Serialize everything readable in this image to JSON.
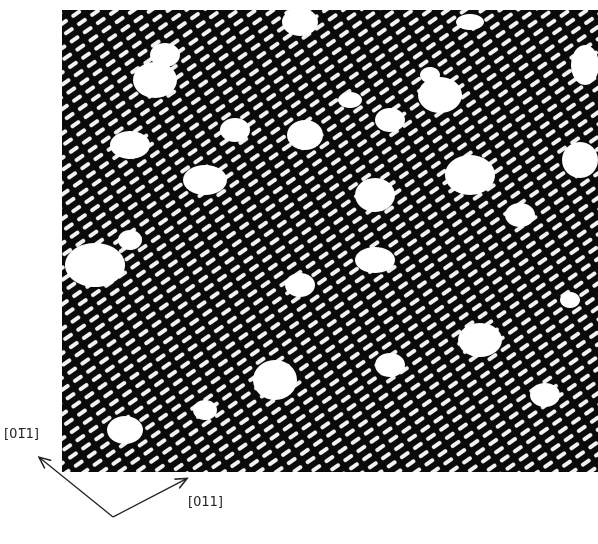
{
  "labels": {
    "direction_a": "[01̅1]",
    "direction_b": "[011]"
  }
}
